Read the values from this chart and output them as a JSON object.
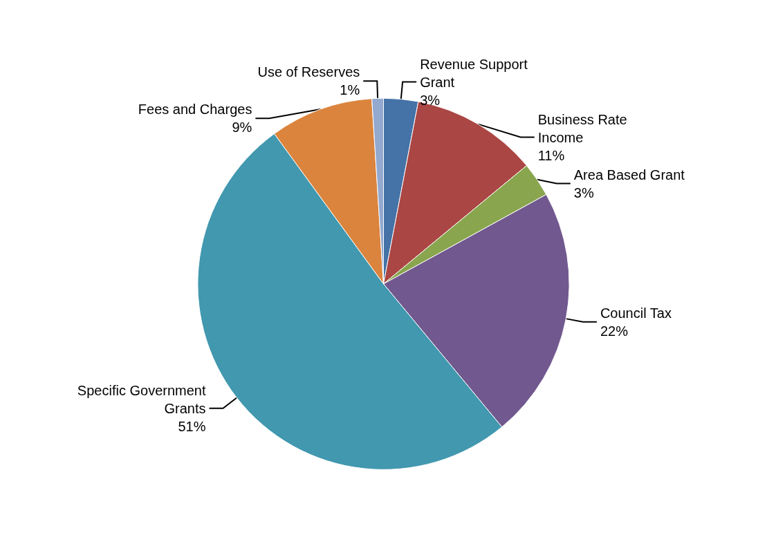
{
  "chart_data": {
    "type": "pie",
    "categories": [
      "Revenue Support Grant",
      "Business Rate Income",
      "Area Based Grant",
      "Council Tax",
      "Specific Government Grants",
      "Fees and Charges",
      "Use of Reserves"
    ],
    "values": [
      3,
      11,
      3,
      22,
      51,
      9,
      1
    ],
    "value_labels": [
      "3%",
      "11%",
      "3%",
      "22%",
      "51%",
      "9%",
      "1%"
    ],
    "colors": [
      "#4572a7",
      "#aa4643",
      "#89a54e",
      "#71588f",
      "#4198af",
      "#db843d",
      "#93a9cf"
    ],
    "legend": false
  }
}
